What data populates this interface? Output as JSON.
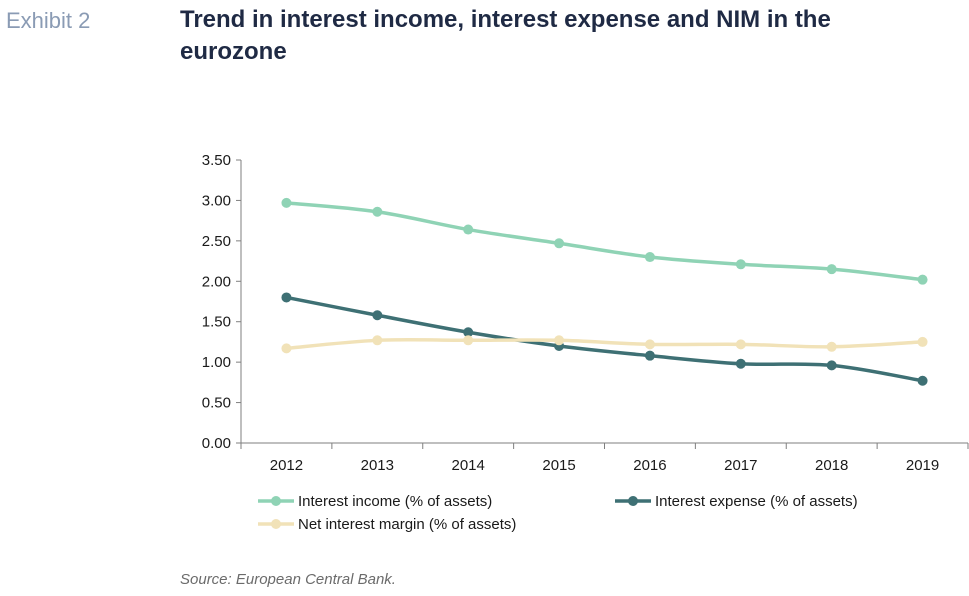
{
  "header": {
    "exhibit_label": "Exhibit 2",
    "title": "Trend in interest income, interest expense and NIM in the eurozone"
  },
  "footer": {
    "source": "Source: European Central Bank."
  },
  "chart_data": {
    "type": "line",
    "title": "",
    "xlabel": "",
    "ylabel": "",
    "categories": [
      "2012",
      "2013",
      "2014",
      "2015",
      "2016",
      "2017",
      "2018",
      "2019"
    ],
    "ylim": [
      0,
      3.5
    ],
    "yticks": [
      "0.00",
      "0.50",
      "1.00",
      "1.50",
      "2.00",
      "2.50",
      "3.00",
      "3.50"
    ],
    "grid": false,
    "legend_position": "bottom",
    "series": [
      {
        "name": "Interest income (% of assets)",
        "color": "#8fd3b5",
        "values": [
          2.97,
          2.86,
          2.64,
          2.47,
          2.3,
          2.21,
          2.15,
          2.02
        ]
      },
      {
        "name": "Interest expense (% of assets)",
        "color": "#3e7074",
        "values": [
          1.8,
          1.58,
          1.37,
          1.2,
          1.08,
          0.98,
          0.96,
          0.77
        ]
      },
      {
        "name": "Net interest margin (% of assets)",
        "color": "#f1e2b8",
        "values": [
          1.17,
          1.27,
          1.27,
          1.27,
          1.22,
          1.22,
          1.19,
          1.25
        ]
      }
    ]
  }
}
